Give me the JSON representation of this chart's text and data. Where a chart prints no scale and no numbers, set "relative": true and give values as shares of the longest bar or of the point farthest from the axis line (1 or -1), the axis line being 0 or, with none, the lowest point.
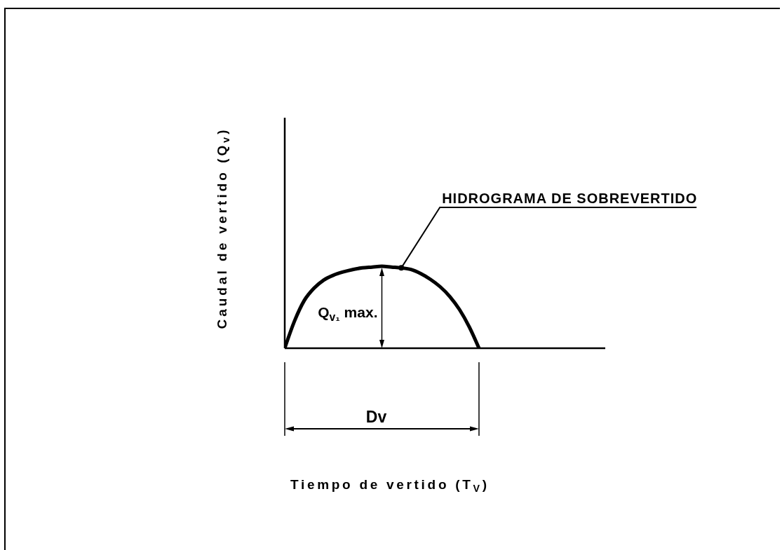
{
  "chart_data": {
    "type": "line",
    "relative": true,
    "ylabel": "Caudal de vertido (Q$_{v}$)",
    "annotations": [
      "HIDROGRAMA DE SOBREVERTIDO",
      "Q$_{v₁}$ max.",
      "Dv",
      "Tiempo de vertido (T$_{V}$)"
    ],
    "categories": [
      null,
      null,
      null,
      null,
      null,
      null,
      null,
      null,
      null,
      null,
      null,
      null,
      null,
      null,
      null,
      null,
      null,
      null,
      null,
      null,
      null,
      null,
      null,
      null,
      null,
      null,
      null,
      null,
      null,
      null,
      null,
      null,
      null,
      null
    ],
    "series": [
      {
        "color": "#000000",
        "values": [
          0,
          0.33,
          0.58,
          0.73,
          0.83,
          0.89,
          0.93,
          0.96,
          0.98,
          0.99,
          1,
          0.99,
          0.98,
          0.96,
          0.91,
          0.84,
          0.75,
          0.63,
          0.47,
          0.26,
          0,
          null,
          null,
          null,
          null,
          null,
          null,
          null,
          null,
          null,
          null,
          null,
          null,
          null
        ]
      }
    ]
  }
}
